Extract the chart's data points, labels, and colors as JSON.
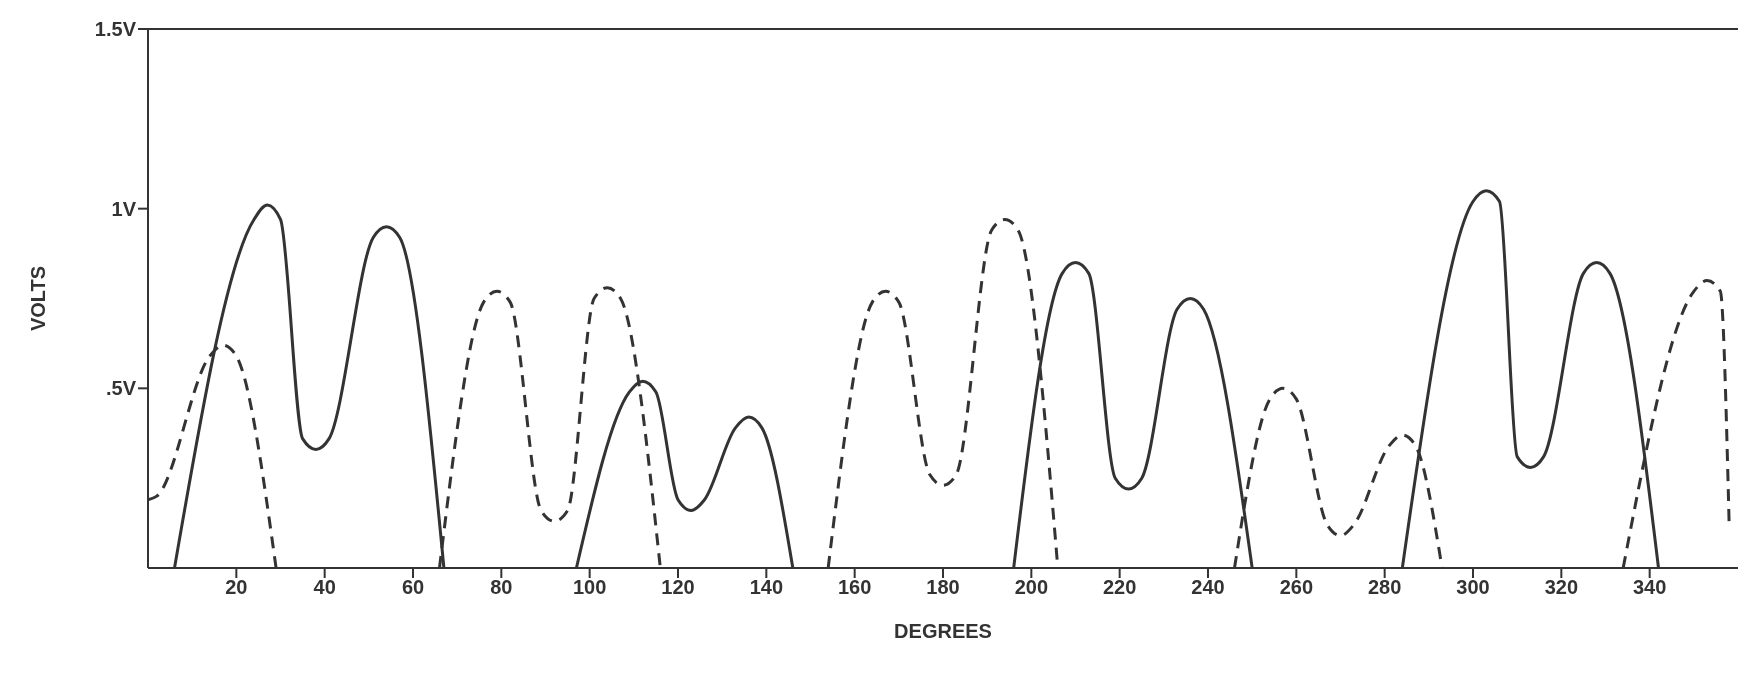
{
  "chart_data": {
    "type": "line",
    "xlabel": "DEGREES",
    "ylabel": "VOLTS",
    "xlim": [
      0,
      360
    ],
    "xticks": [
      20,
      40,
      60,
      80,
      100,
      120,
      140,
      160,
      180,
      200,
      220,
      240,
      260,
      280,
      300,
      320,
      340
    ],
    "ylim": [
      0,
      1.5
    ],
    "yticks": [
      {
        "value": 0.5,
        "label": ".5V"
      },
      {
        "value": 1,
        "label": "1V"
      },
      {
        "value": 1.5,
        "label": "1.5V"
      }
    ],
    "marker": "none",
    "series": [
      {
        "color": "#333333",
        "line_style": "solid",
        "x": [
          6,
          24,
          27,
          30,
          35,
          38,
          41,
          51,
          54,
          57,
          67,
          80,
          97,
          109,
          112,
          115,
          120,
          123,
          126,
          133,
          136,
          139,
          146,
          170,
          196,
          207,
          210,
          213,
          219,
          222,
          225,
          233,
          236,
          239,
          250,
          265,
          284,
          300,
          303,
          306,
          310,
          313,
          316,
          325,
          328,
          331,
          342
        ],
        "values": [
          0,
          0.97,
          1.01,
          0.97,
          0.36,
          0.33,
          0.36,
          0.92,
          0.95,
          0.92,
          0,
          null,
          0,
          0.49,
          0.52,
          0.49,
          0.19,
          0.16,
          0.19,
          0.39,
          0.42,
          0.39,
          0,
          null,
          0,
          0.82,
          0.85,
          0.82,
          0.25,
          0.22,
          0.25,
          0.72,
          0.75,
          0.72,
          0,
          null,
          0,
          1.02,
          1.05,
          1.02,
          0.31,
          0.28,
          0.31,
          0.82,
          0.85,
          0.82,
          0
        ]
      },
      {
        "color": "#333333",
        "line_style": "dashed",
        "x": [
          0,
          2,
          14,
          17,
          20,
          29,
          45,
          66,
          76,
          79,
          82,
          89,
          92,
          95,
          101,
          104,
          107,
          116,
          135,
          154,
          164,
          167,
          170,
          177,
          180,
          183,
          191,
          194,
          197,
          206,
          225,
          246,
          254,
          257,
          260,
          267,
          270,
          273,
          281,
          284,
          287,
          293,
          315,
          334,
          350,
          353,
          356,
          358
        ],
        "values": [
          0.19,
          0.2,
          0.59,
          0.62,
          0.59,
          0,
          null,
          0,
          0.74,
          0.77,
          0.74,
          0.16,
          0.13,
          0.16,
          0.75,
          0.78,
          0.75,
          0,
          null,
          0,
          0.74,
          0.77,
          0.74,
          0.26,
          0.23,
          0.26,
          0.94,
          0.97,
          0.94,
          0,
          null,
          0,
          0.47,
          0.5,
          0.47,
          0.12,
          0.09,
          0.12,
          0.34,
          0.37,
          0.34,
          0,
          null,
          0,
          0.77,
          0.8,
          0.77,
          0.12
        ]
      }
    ]
  }
}
